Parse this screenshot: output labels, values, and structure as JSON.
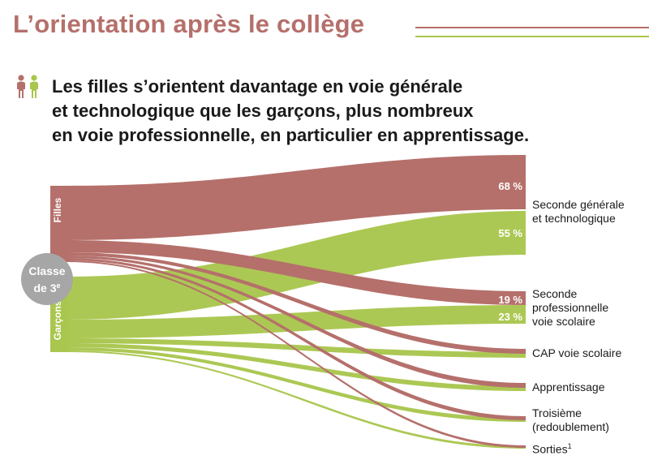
{
  "title": "L’orientation après le collège",
  "headline": [
    "Les filles s’orientent davantage en voie générale",
    "et technologique que les garçons, plus nombreux",
    "en voie professionnelle, en particulier en apprentissage."
  ],
  "colors": {
    "filles": "#b5706b",
    "garcons": "#a9c64e",
    "badge": "#a6a6a6",
    "title": "#b5706b"
  },
  "icons": {
    "gender": "girl-boy-icon"
  },
  "source": {
    "groups": [
      {
        "id": "filles",
        "label": "Filles"
      },
      {
        "id": "garcons",
        "label": "Garçons"
      }
    ],
    "badge": {
      "line1": "Classe",
      "line2": "de 3",
      "sup": "e"
    }
  },
  "targets": [
    {
      "id": "seconde_gt",
      "lines": [
        "Seconde générale",
        "et technologique"
      ]
    },
    {
      "id": "seconde_pro",
      "lines": [
        "Seconde",
        "professionnelle",
        "voie scolaire"
      ]
    },
    {
      "id": "cap",
      "lines": [
        "CAP voie scolaire"
      ]
    },
    {
      "id": "apprentissage",
      "lines": [
        "Apprentissage"
      ]
    },
    {
      "id": "troisieme",
      "lines": [
        "Troisième",
        "(redoublement)"
      ]
    },
    {
      "id": "sorties",
      "lines": [
        "Sorties"
      ],
      "sup": "1"
    }
  ],
  "chart_data": {
    "type": "sankey",
    "unit": "%",
    "flows": [
      {
        "from": "filles",
        "to": "seconde_gt",
        "label": "68 %"
      },
      {
        "from": "filles",
        "to": "seconde_pro",
        "label": "19 %"
      },
      {
        "from": "filles",
        "to": "cap"
      },
      {
        "from": "filles",
        "to": "apprentissage"
      },
      {
        "from": "filles",
        "to": "troisieme"
      },
      {
        "from": "filles",
        "to": "sorties"
      },
      {
        "from": "garcons",
        "to": "seconde_gt",
        "label": "55 %"
      },
      {
        "from": "garcons",
        "to": "seconde_pro",
        "label": "23 %"
      },
      {
        "from": "garcons",
        "to": "cap"
      },
      {
        "from": "garcons",
        "to": "apprentissage"
      },
      {
        "from": "garcons",
        "to": "troisieme"
      },
      {
        "from": "garcons",
        "to": "sorties"
      }
    ]
  }
}
